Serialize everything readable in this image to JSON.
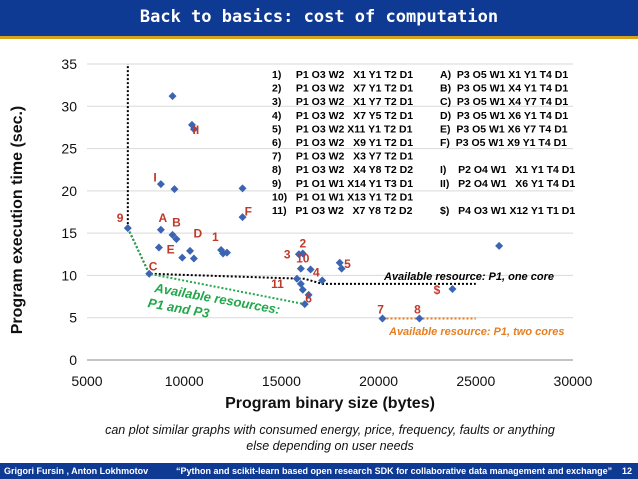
{
  "header": {
    "title": "Back to basics: cost of computation"
  },
  "chart_data": {
    "type": "scatter",
    "xlabel": "Program binary size (bytes)",
    "ylabel": "Program execution time (sec.)",
    "xlim": [
      5000,
      30000
    ],
    "ylim": [
      0,
      35
    ],
    "xticks": [
      5000,
      10000,
      15000,
      20000,
      25000,
      30000
    ],
    "yticks": [
      0,
      5,
      10,
      15,
      20,
      25,
      30,
      35
    ],
    "color": "#3b64b3",
    "points": [
      {
        "x": 9400,
        "y": 31.2
      },
      {
        "x": 10400,
        "y": 27.8
      },
      {
        "x": 10500,
        "y": 27.3
      },
      {
        "x": 8800,
        "y": 20.8
      },
      {
        "x": 9500,
        "y": 20.2
      },
      {
        "x": 13000,
        "y": 20.3
      },
      {
        "x": 13000,
        "y": 16.9
      },
      {
        "x": 7100,
        "y": 15.6
      },
      {
        "x": 8800,
        "y": 15.4
      },
      {
        "x": 9400,
        "y": 14.8
      },
      {
        "x": 9600,
        "y": 14.3
      },
      {
        "x": 8700,
        "y": 13.3
      },
      {
        "x": 9900,
        "y": 12.1
      },
      {
        "x": 10500,
        "y": 12.0
      },
      {
        "x": 10300,
        "y": 12.9
      },
      {
        "x": 11900,
        "y": 13.0
      },
      {
        "x": 12000,
        "y": 12.6
      },
      {
        "x": 12200,
        "y": 12.7
      },
      {
        "x": 8200,
        "y": 10.2
      },
      {
        "x": 15900,
        "y": 12.5
      },
      {
        "x": 16100,
        "y": 12.6
      },
      {
        "x": 16000,
        "y": 10.8
      },
      {
        "x": 16500,
        "y": 10.7
      },
      {
        "x": 15800,
        "y": 9.6
      },
      {
        "x": 16000,
        "y": 9.0
      },
      {
        "x": 16100,
        "y": 8.3
      },
      {
        "x": 16400,
        "y": 7.7
      },
      {
        "x": 16200,
        "y": 6.6
      },
      {
        "x": 17100,
        "y": 9.4
      },
      {
        "x": 18000,
        "y": 11.5
      },
      {
        "x": 18100,
        "y": 10.8
      },
      {
        "x": 20200,
        "y": 4.9
      },
      {
        "x": 22100,
        "y": 4.9
      },
      {
        "x": 23800,
        "y": 8.4
      },
      {
        "x": 26200,
        "y": 13.5
      }
    ],
    "point_labels": [
      {
        "text": "I",
        "x": 8500,
        "y": 21.1,
        "color": "#c0392b"
      },
      {
        "text": "II",
        "x": 10600,
        "y": 26.7,
        "color": "#c0392b"
      },
      {
        "text": "F",
        "x": 13300,
        "y": 17.1,
        "color": "#c0392b"
      },
      {
        "text": "9",
        "x": 6700,
        "y": 16.3,
        "color": "#c0392b"
      },
      {
        "text": "A",
        "x": 8900,
        "y": 16.3,
        "color": "#c0392b"
      },
      {
        "text": "B",
        "x": 9600,
        "y": 15.8,
        "color": "#c0392b"
      },
      {
        "text": "D",
        "x": 10700,
        "y": 14.5,
        "color": "#c0392b"
      },
      {
        "text": "1",
        "x": 11600,
        "y": 14.1,
        "color": "#c0392b"
      },
      {
        "text": "E",
        "x": 9300,
        "y": 12.6,
        "color": "#c0392b"
      },
      {
        "text": "C",
        "x": 8400,
        "y": 10.6,
        "color": "#c0392b"
      },
      {
        "text": "2",
        "x": 16100,
        "y": 13.3,
        "color": "#c0392b"
      },
      {
        "text": "3",
        "x": 15300,
        "y": 12.0,
        "color": "#c0392b"
      },
      {
        "text": "10",
        "x": 16100,
        "y": 11.5,
        "color": "#c0392b"
      },
      {
        "text": "4",
        "x": 16800,
        "y": 9.9,
        "color": "#c0392b"
      },
      {
        "text": "5",
        "x": 18400,
        "y": 10.9,
        "color": "#c0392b"
      },
      {
        "text": "11",
        "x": 14800,
        "y": 8.5,
        "color": "#c0392b"
      },
      {
        "text": "6",
        "x": 16400,
        "y": 6.8,
        "color": "#c0392b"
      },
      {
        "text": "7",
        "x": 20100,
        "y": 5.5,
        "color": "#c0392b"
      },
      {
        "text": "8",
        "x": 22000,
        "y": 5.5,
        "color": "#c0392b"
      },
      {
        "text": "$",
        "x": 23000,
        "y": 7.8,
        "color": "#c0392b"
      }
    ],
    "frontier_one_core": {
      "x": [
        7100,
        8200,
        16200,
        17100,
        25000
      ],
      "y": [
        15.6,
        10.2,
        9.6,
        9.0,
        9.0
      ],
      "color": "#000000"
    },
    "frontier_two_cores": {
      "x": [
        20200,
        25000
      ],
      "y": [
        4.9,
        4.9
      ],
      "color": "#e67e22"
    },
    "frontier_p1_p3": {
      "x": [
        7100,
        8200,
        16200
      ],
      "y": [
        15.6,
        10.2,
        6.6
      ],
      "color": "#22a84a"
    },
    "vertical_bound": {
      "x": 7100,
      "y": [
        15.6,
        35
      ]
    },
    "annotations": [
      {
        "text": "Available resource: P1, one core",
        "color": "#000000"
      },
      {
        "text": "Available resource: P1, two cores",
        "color": "#e67e22"
      },
      {
        "line1": "Available resources:",
        "line2": "P1 and P3",
        "color": "#22a84a"
      }
    ],
    "legend_left": [
      "1)     P1 O3 W2   X1 Y1 T2 D1",
      "2)     P1 O3 W2   X7 Y1 T2 D1",
      "3)     P1 O3 W2   X1 Y7 T2 D1",
      "4)     P1 O3 W2   X7 Y5 T2 D1",
      "5)     P1 O3 W2 X11 Y1 T2 D1",
      "6)     P1 O3 W2   X9 Y1 T2 D1",
      "7)     P1 O3 W2   X3 Y7 T2 D1",
      "8)     P1 O3 W2   X4 Y8 T2 D2",
      "9)     P1 O1 W1 X14 Y1 T3 D1",
      "10)   P1 O1 W1 X13 Y1 T2 D1",
      "11)   P1 O3 W2   X7 Y8 T2 D2"
    ],
    "legend_right": [
      "A)  P3 O5 W1 X1 Y1 T4 D1",
      "B)  P3 O5 W1 X4 Y1 T4 D1",
      "C)  P3 O5 W1 X4 Y7 T4 D1",
      "D)  P3 O5 W1 X6 Y1 T4 D1",
      "E)  P3 O5 W1 X6 Y7 T4 D1",
      "F)  P3 O5 W1 X9 Y1 T4 D1",
      "",
      "I)    P2 O4 W1   X1 Y1 T4 D1",
      "II)   P2 O4 W1   X6 Y1 T4 D1",
      "",
      "$)   P4 O3 W1 X12 Y1 T1 D1"
    ]
  },
  "caption": {
    "line1": "can plot similar graphs with consumed energy, price, frequency, faults or anything",
    "line2": "else depending on user needs"
  },
  "footer": {
    "authors": "Grigori Fursin , Anton Lokhmotov",
    "talk": "“Python and scikit-learn based open research SDK for collaborative data management and exchange”",
    "page": "12"
  }
}
